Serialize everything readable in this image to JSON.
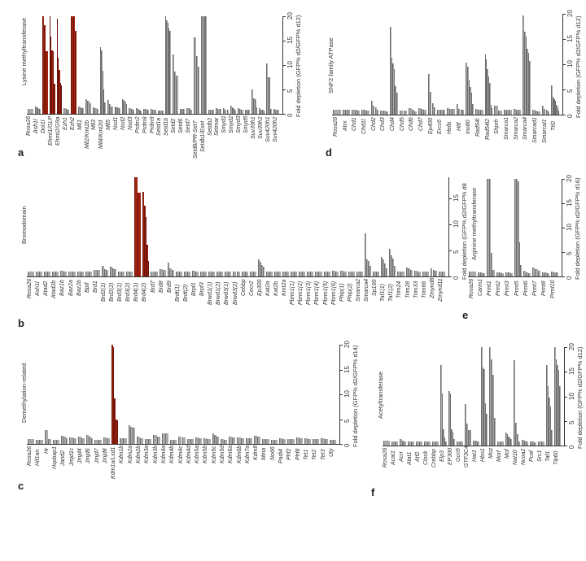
{
  "chart_data": [
    {
      "panel": "a",
      "type": "bar",
      "title": "Lysine methyltransferase",
      "ylabel": "Fold depletion (GFP% d2/GFP% d12)",
      "ylim": [
        0,
        20
      ],
      "yticks": [
        "0",
        "5",
        "10",
        "15",
        "20"
      ],
      "highlight_color": "#a3220f",
      "bar_color": "#a9a9a9",
      "categories": [
        "Rosa26",
        "Ash1l",
        "Dot1l",
        "Ehmt1/GLP",
        "Ehmt2/G9a",
        "Ezh1",
        "Ezh2",
        "Mll1",
        "Mll2/Kmt2b",
        "Mll3",
        "Mll4/Kmt2d",
        "Mll5",
        "Nsd1",
        "Nsd2",
        "Nsd3",
        "Prdm2",
        "Prdm8",
        "Prdm9",
        "Setd1a",
        "Setd1b",
        "Setd2",
        "Setd6",
        "Setd7",
        "Setd8/PR-Set7",
        "Setdb1/Eset",
        "Setdb2",
        "Setmar",
        "Smyd1",
        "Smyd2",
        "Smyd3",
        "Smyd5",
        "Suv39h1",
        "Suv39h2",
        "Suv420h1",
        "Suv420h2"
      ],
      "highlighted": [
        "Dot1l",
        "Ehmt1/GLP",
        "Ehmt2/G9a",
        "Ezh2"
      ],
      "values": [
        [
          1
        ],
        [
          1.5,
          1.3,
          1.1,
          1
        ],
        [
          20,
          18.2,
          12.8
        ],
        [
          20,
          15.8,
          13,
          12.8,
          6.2
        ],
        [
          19.5,
          11.5,
          9,
          6.4,
          5.8
        ],
        [
          1.2,
          1,
          0.9
        ],
        [
          20,
          20,
          17
        ],
        [
          1.5,
          1.4,
          1.2,
          1.1
        ],
        [
          3,
          2.6,
          2.2
        ],
        [
          1.3,
          1.1,
          1
        ],
        [
          13.7,
          13,
          8.8,
          5,
          2.4
        ],
        [
          2.8,
          2,
          1.5
        ],
        [
          1.5,
          1.4,
          1.3,
          1.2
        ],
        [
          3,
          2.8,
          2.5,
          2
        ],
        [
          1.2,
          1,
          0.9
        ],
        [
          1.1,
          1,
          0.9,
          0.7
        ],
        [
          1,
          1,
          0.8
        ],
        [
          1,
          0.9,
          0.9
        ],
        [
          0.7,
          0.7,
          0.6
        ],
        [
          20,
          19.2,
          18.6,
          17.5,
          17
        ],
        [
          12.1,
          8.6,
          7.8
        ],
        [
          1,
          1,
          1
        ],
        [
          1.2,
          1.1,
          0.9
        ],
        [
          15.7,
          11.9,
          9.6
        ],
        [
          20,
          20,
          20,
          20
        ],
        [
          0.9,
          0.9,
          0.9
        ],
        [
          1.1,
          1,
          1
        ],
        [
          1.2,
          0.9,
          0.9
        ],
        [
          1.6,
          1.3,
          1.1,
          0.9
        ],
        [
          1.2,
          1,
          0.8
        ],
        [
          0.9,
          0.9,
          0.8
        ],
        [
          5,
          3.2,
          3,
          1.4
        ],
        [
          1.2,
          0.9,
          0.8,
          0.6
        ],
        [
          10.3,
          7.5,
          7.5,
          1
        ],
        [
          1,
          0.9,
          0.8
        ]
      ]
    },
    {
      "panel": "b",
      "type": "bar",
      "title": "Bromodomain",
      "ylabel": "Fold depletion (GFP% d2/GFP% d8",
      "ylim": [
        0,
        19
      ],
      "yticks": [
        "0",
        "5",
        "10",
        "15"
      ],
      "highlight_color": "#a3220f",
      "bar_color": "#a9a9a9",
      "categories": [
        "Rosa26",
        "Ash1l",
        "Atad2",
        "Atad2b",
        "Baz1b",
        "Baz2a",
        "Baz2b",
        "Bptf",
        "Brd1",
        "Brd2(1)",
        "Brd2(2)",
        "Brd3(1)",
        "Brd3(2)",
        "Brd4(1)",
        "Brd4(2)",
        "Brd7",
        "Brd8",
        "Brd9",
        "Brdt(1)",
        "Brdt(2)",
        "Brpf1",
        "Brpf3",
        "Brwd1(1)",
        "Brwd1(2)",
        "Brwd3(1)",
        "Brwd3(2)",
        "Cebbp",
        "Cecr2",
        "Ep300",
        "Kat2a",
        "Kat2b",
        "Kmt2a",
        "Pbrm1(1)",
        "Pbrm1(2)",
        "Pbrm1(3)",
        "Pbrm1(4)",
        "Pbrm1(5)",
        "Pbrm1(6)",
        "Phip(1)",
        "Phip(2)",
        "Smarca2",
        "Smarca4",
        "Sp100",
        "Taf1(1)",
        "Taf1(2)",
        "Trim24",
        "Trim28",
        "Trim33",
        "Trim66",
        "Zmynd8",
        "Zmynd11"
      ],
      "highlighted": [
        "Brd4(1)",
        "Brd4(2)"
      ],
      "values": [
        [
          1
        ],
        [
          1,
          1
        ],
        [
          1,
          1
        ],
        [
          1,
          1
        ],
        [
          1.1,
          1
        ],
        [
          1,
          1
        ],
        [
          1,
          1
        ],
        [
          1,
          1
        ],
        [
          1.2,
          1.2
        ],
        [
          2,
          1.4,
          1.3
        ],
        [
          1.8,
          1.6,
          1.4
        ],
        [
          1,
          1
        ],
        [
          1,
          1
        ],
        [
          19,
          16
        ],
        [
          16.2,
          13.5,
          11.3,
          6,
          3
        ],
        [
          0.9,
          1
        ],
        [
          1.4,
          1.3
        ],
        [
          2.6,
          1.5,
          1.2
        ],
        [
          1,
          1
        ],
        [
          1,
          1
        ],
        [
          1.1,
          1
        ],
        [
          1,
          1
        ],
        [
          1,
          1
        ],
        [
          1,
          1
        ],
        [
          1,
          1
        ],
        [
          1,
          1
        ],
        [
          1,
          1
        ],
        [
          1,
          1
        ],
        [
          3.2,
          2.8,
          2.2,
          1.8
        ],
        [
          1,
          1
        ],
        [
          1,
          1
        ],
        [
          1,
          1
        ],
        [
          1,
          1
        ],
        [
          1,
          1
        ],
        [
          1,
          1
        ],
        [
          1,
          1
        ],
        [
          1,
          1
        ],
        [
          1.1,
          1
        ],
        [
          1.1,
          1
        ],
        [
          1,
          1
        ],
        [
          1,
          1
        ],
        [
          8.2,
          3.3,
          3,
          2.1
        ],
        [
          1,
          1
        ],
        [
          3.8,
          3.3,
          2.5,
          1.5
        ],
        [
          5.3,
          4,
          3.5,
          2
        ],
        [
          1,
          1
        ],
        [
          1.7,
          1.5,
          1.3
        ],
        [
          1.1,
          1
        ],
        [
          1,
          1
        ],
        [
          1.6,
          1.3,
          1.1
        ],
        [
          1,
          1
        ]
      ]
    },
    {
      "panel": "c",
      "type": "bar",
      "title": "Demethylation-related",
      "ylabel": "Fold depletion (GFP% d2/GFP% d14)",
      "ylim": [
        0,
        20
      ],
      "yticks": [
        "0",
        "5",
        "10",
        "15",
        "20"
      ],
      "highlight_color": "#a3220f",
      "bar_color": "#a9a9a9",
      "categories": [
        "Rosa26",
        "Hif1an",
        "Hr",
        "Hspbap1",
        "Jarid2",
        "Jmjd1c",
        "Jmjd4",
        "Jmjd6",
        "Jmjd7",
        "Jmjd8",
        "Kdm1a/Lsd1",
        "Kdm1b",
        "Kdm2a",
        "Kdm2b",
        "Kdm3a",
        "Kdm3b",
        "Kdm4a",
        "Kdm4b",
        "Kdm4c",
        "Kdm4d",
        "Kdm5a",
        "Kdm5b",
        "Kdm5c",
        "Kdm5d",
        "Kdm6a",
        "Kdm6b",
        "Kdm7a",
        "Kdm8",
        "Mina",
        "No66",
        "Padi4",
        "Phf2",
        "Phf8",
        "Tet1",
        "Tet2",
        "Tet3",
        "Uty"
      ],
      "highlighted": [
        "Kdm1a/Lsd1"
      ],
      "values": [
        [
          1
        ],
        [
          0.9,
          0.9
        ],
        [
          2.8,
          1
        ],
        [
          0.9,
          0.9
        ],
        [
          1.6,
          1.4,
          1.2
        ],
        [
          1.3,
          1.1
        ],
        [
          1.4,
          1.1
        ],
        [
          1.8,
          1.4,
          1.2
        ],
        [
          0.9,
          0.9
        ],
        [
          1.3,
          1.1
        ],
        [
          20,
          19.5,
          9.2,
          4.9,
          4.7
        ],
        [
          1.2,
          1.1
        ],
        [
          3.8,
          3.5,
          3.2
        ],
        [
          1.4,
          1.2
        ],
        [
          1,
          1
        ],
        [
          1.8,
          1.5
        ],
        [
          2.2,
          2.1
        ],
        [
          0.9,
          0.9
        ],
        [
          1.5,
          1.3
        ],
        [
          1,
          1
        ],
        [
          1.3,
          1.2
        ],
        [
          1.2,
          1
        ],
        [
          2.1,
          1.8,
          1.4
        ],
        [
          1,
          0.9
        ],
        [
          1.4,
          1.3
        ],
        [
          1.3,
          1.1
        ],
        [
          1.1,
          1.1
        ],
        [
          1.7,
          1.4
        ],
        [
          1,
          1
        ],
        [
          0.9,
          0.9
        ],
        [
          1.2,
          1
        ],
        [
          1,
          1
        ],
        [
          1.3,
          1.1
        ],
        [
          1.2,
          1
        ],
        [
          1,
          1
        ],
        [
          1.2,
          1
        ],
        [
          0.9,
          0.9
        ]
      ]
    },
    {
      "panel": "d",
      "type": "bar",
      "title": "SNF2 family ATPase",
      "ylabel": "Fold depletion (GFP% d2/GFP% d12)",
      "ylim": [
        0,
        20
      ],
      "yticks": [
        "0",
        "5",
        "10",
        "15",
        "20"
      ],
      "bar_color": "#a9a9a9",
      "categories": [
        "Rosa26",
        "Atrx",
        "Chd1",
        "Chd1l",
        "Chd2",
        "Chd3",
        "Chd4",
        "Chd5",
        "Chd6",
        "Chd7",
        "Ep400",
        "Ercc6",
        "Hells",
        "Hltf",
        "Ino80",
        "Rad54l",
        "Rad54l2",
        "Shprh",
        "Smarca1",
        "Smarca2",
        "Smarca4",
        "Smarcad1",
        "Smarcal1",
        "Ttf2"
      ],
      "values": [
        [
          1
        ],
        [
          1,
          1,
          1
        ],
        [
          1,
          0.9,
          0.8
        ],
        [
          1,
          0.9,
          0.8
        ],
        [
          2.8,
          1.8,
          1.4,
          1
        ],
        [
          0.8,
          0.8,
          0.7
        ],
        [
          17.4,
          11.3,
          10.2,
          9,
          5.6,
          4.4
        ],
        [
          0.8,
          0.8
        ],
        [
          1.3,
          1,
          0.7
        ],
        [
          1.3,
          1.2,
          1
        ],
        [
          8.1,
          4.5,
          2.3,
          1.5
        ],
        [
          1,
          1,
          0.9
        ],
        [
          1.3,
          1.2,
          1.1
        ],
        [
          2.1,
          1.2,
          1,
          0.9
        ],
        [
          10.3,
          9.5,
          7,
          5.5,
          4.4,
          2.1
        ],
        [
          1.1,
          1,
          1
        ],
        [
          12,
          11,
          9,
          7.6,
          6.3,
          2,
          1.3
        ],
        [
          1.8,
          0.8
        ],
        [
          1,
          1,
          1
        ],
        [
          1.1,
          1,
          1
        ],
        [
          19.7,
          16.5,
          15.5,
          13,
          12.2,
          10.6
        ],
        [
          0.9,
          0.8,
          0.7
        ],
        [
          1.8,
          1.2,
          1,
          0.6
        ],
        [
          5.8,
          3.5,
          3.3,
          3,
          2.7,
          2,
          1.5,
          0.8
        ]
      ]
    },
    {
      "panel": "e",
      "type": "bar",
      "title": "Arginine methyltransferase",
      "ylabel": "Fold depletion (GFP% d2/GFP% d16)",
      "ylim": [
        0,
        20
      ],
      "yticks": [
        "0",
        "5",
        "10",
        "15",
        "20"
      ],
      "bar_color": "#a9a9a9",
      "categories": [
        "Rosa26",
        "Carm1",
        "Prmt1",
        "Prmt2",
        "Prmt3",
        "Prmt5",
        "Prmt6",
        "Prmt7",
        "Prmt8",
        "Prmt10"
      ],
      "values": [
        [
          1
        ],
        [
          0.9,
          0.8,
          0.7
        ],
        [
          20,
          20,
          4.8,
          1.4
        ],
        [
          0.9,
          0.8,
          0.7
        ],
        [
          0.9,
          0.8,
          0.7
        ],
        [
          20,
          20,
          19.5,
          7,
          2.3
        ],
        [
          1.1,
          0.9,
          0.7
        ],
        [
          1.8,
          1.5,
          1.2
        ],
        [
          0.9,
          0.8,
          0.7
        ],
        [
          1,
          0.9,
          0.8
        ]
      ]
    },
    {
      "panel": "f",
      "type": "bar",
      "title": "Acetyltransferase",
      "ylabel": "Fold depletion (GFP% d2/GFP% d12)",
      "ylim": [
        0,
        20
      ],
      "yticks": [
        "0",
        "5",
        "10",
        "15",
        "20"
      ],
      "bar_color": "#a9a9a9",
      "categories": [
        "Rosa26",
        "Acat1",
        "Acrr",
        "Atat1",
        "Atf2",
        "Clock",
        "Crebbp",
        "Elp3",
        "EP300",
        "Gcn5",
        "GTF3C4",
        "Hat1",
        "Hbo1",
        "Moz",
        "Morf",
        "Mof",
        "Nat10",
        "Ncoa2",
        "Pcaf",
        "Src1",
        "Taf1",
        "Tip60"
      ],
      "values": [
        [
          1
        ],
        [
          0.9,
          0.9
        ],
        [
          1.3,
          1,
          0.9
        ],
        [
          0.9,
          0.9
        ],
        [
          0.8,
          0.8
        ],
        [
          0.8,
          0.8
        ],
        [
          0.8,
          0.8
        ],
        [
          16.3,
          10.6,
          3.3,
          1.6,
          0.9
        ],
        [
          11,
          10.5,
          3.3,
          2.8,
          1.3
        ],
        [
          0.8,
          0.8
        ],
        [
          8.4,
          4.4,
          3.1,
          3.1
        ],
        [
          1,
          1,
          0.9
        ],
        [
          20,
          15.9,
          15.5,
          8.6,
          6.4
        ],
        [
          20,
          17.5,
          14.3,
          5.6
        ],
        [
          0.8,
          0.8
        ],
        [
          2.7,
          2.3,
          1.9,
          1.6,
          1.3
        ],
        [
          17.3,
          4.7,
          2.3,
          0.9
        ],
        [
          1.1,
          1,
          0.9
        ],
        [
          0.9,
          0.8,
          0.7
        ],
        [
          0.8,
          0.8
        ],
        [
          16.3,
          12.1,
          9.7,
          8,
          3.2
        ],
        [
          20,
          17.5,
          16.3,
          15.3,
          12
        ]
      ]
    }
  ],
  "panels": {
    "a": {
      "letter": "a",
      "title": "Lysine methyltransferase",
      "ylabel": "Fold depletion (GFP% d2/GFP% d12)"
    },
    "b": {
      "letter": "b",
      "title": "Bromodomain",
      "ylabel": "Fold depletion (GFP% d2/GFP% d8"
    },
    "c": {
      "letter": "c",
      "title": "Demethylation-related",
      "ylabel": "Fold depletion (GFP% d2/GFP% d14)"
    },
    "d": {
      "letter": "d",
      "title": "SNF2 family ATPase",
      "ylabel": "Fold depletion (GFP% d2/GFP% d12)"
    },
    "e": {
      "letter": "e",
      "title": "Arginine methyltransferase",
      "ylabel": "Fold depletion (GFP% d2/GFP% d16)"
    },
    "f": {
      "letter": "f",
      "title": "Acetyltransferase",
      "ylabel": "Fold depletion (GFP% d2/GFP% d12)"
    }
  }
}
